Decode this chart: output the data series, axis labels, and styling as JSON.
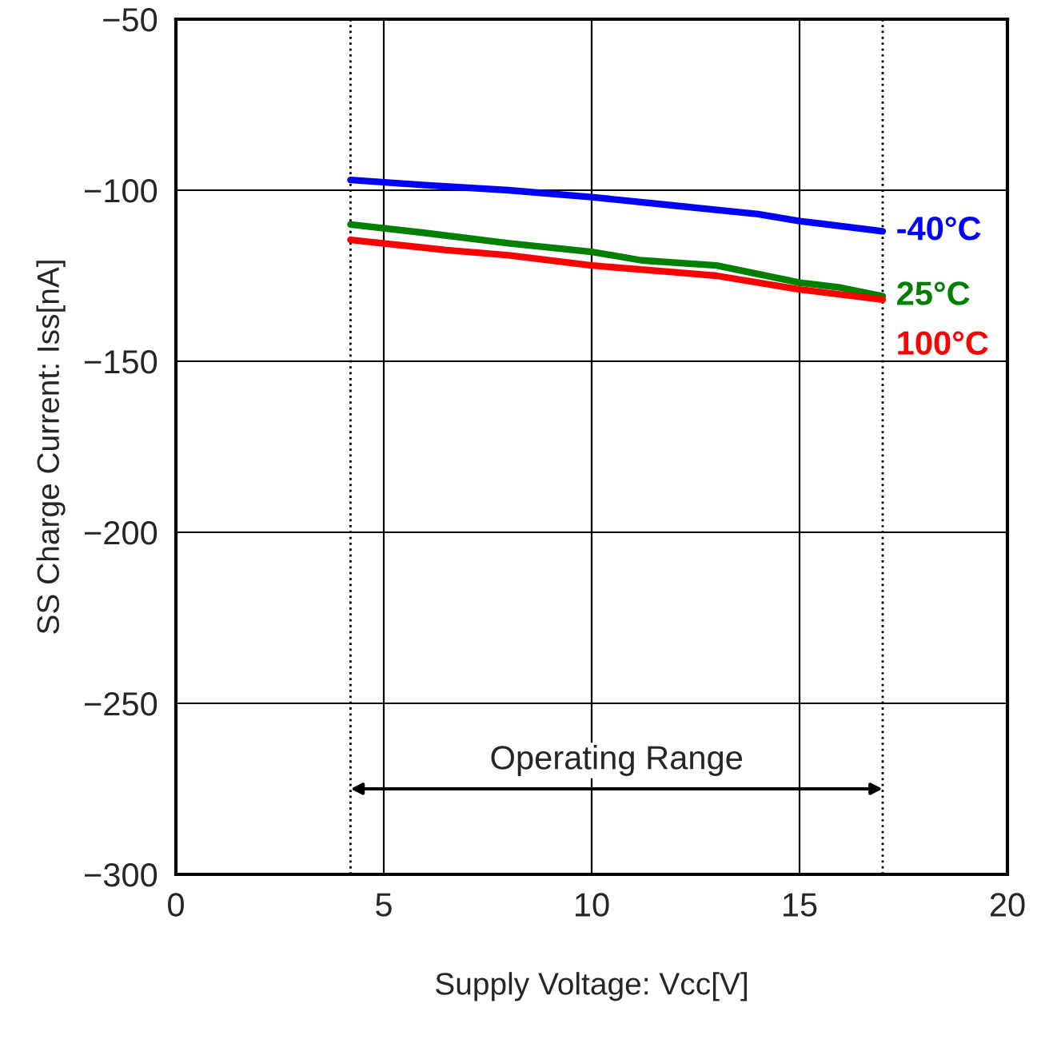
{
  "chart_data": {
    "type": "line",
    "xlabel": "Supply Voltage: Vcc[V]",
    "ylabel": "SS Charge Current: Iss[nA]",
    "xlim": [
      0,
      20
    ],
    "xticks": [
      0,
      5,
      10,
      15,
      20
    ],
    "ylim": [
      -300,
      -50
    ],
    "yticks": [
      -300,
      -250,
      -200,
      -150,
      -100,
      -50
    ],
    "grid": true,
    "legend": false,
    "series": [
      {
        "name": "-40°C",
        "color": "#0000ff",
        "x": [
          4.2,
          6,
          8,
          10,
          12,
          14,
          15,
          17
        ],
        "values": [
          -97,
          -98.5,
          -100,
          -102,
          -104.5,
          -107,
          -109,
          -112
        ]
      },
      {
        "name": "25°C",
        "color": "#008000",
        "x": [
          4.2,
          6,
          8,
          10,
          11.2,
          13,
          15,
          16,
          17
        ],
        "values": [
          -110,
          -112.5,
          -115.5,
          -118,
          -120.5,
          -122,
          -127,
          -128.5,
          -131
        ]
      },
      {
        "name": "100°C",
        "color": "#ff0000",
        "x": [
          4.2,
          6.5,
          8,
          10,
          12,
          13,
          15,
          17
        ],
        "values": [
          -114.5,
          -117.5,
          -119,
          -122,
          -124,
          -125,
          -129,
          -132
        ]
      }
    ],
    "ref_lines": [
      {
        "axis": "x",
        "value": 4.2,
        "line_style": "dotted",
        "color": "#000000"
      },
      {
        "axis": "x",
        "value": 17,
        "line_style": "dotted",
        "color": "#000000"
      }
    ],
    "annotations": [
      "Operating Range"
    ]
  }
}
